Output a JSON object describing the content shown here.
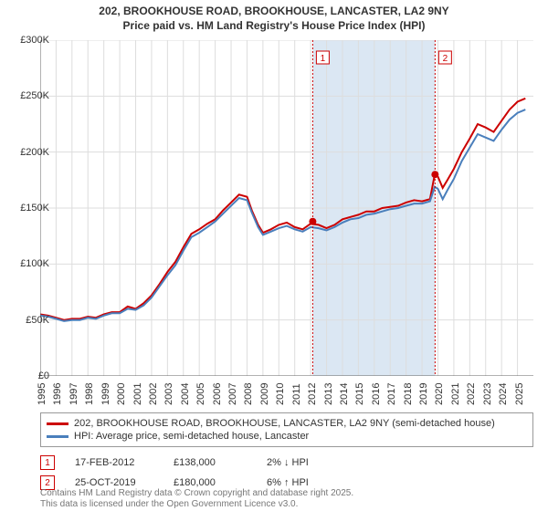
{
  "title_line1": "202, BROOKHOUSE ROAD, BROOKHOUSE, LANCASTER, LA2 9NY",
  "title_line2": "Price paid vs. HM Land Registry's House Price Index (HPI)",
  "title_fontsize": 12,
  "chart": {
    "type": "line",
    "background_color": "#ffffff",
    "shaded_band": {
      "x_start": 2012.13,
      "x_end": 2019.82,
      "color": "#dbe7f3"
    },
    "xlim": [
      1995,
      2026
    ],
    "ylim": [
      0,
      300000
    ],
    "ytick_step": 50000,
    "ytick_format_prefix": "£",
    "ytick_format_suffix": "K",
    "xticks": [
      1995,
      1996,
      1997,
      1998,
      1999,
      2000,
      2001,
      2002,
      2003,
      2004,
      2005,
      2006,
      2007,
      2008,
      2009,
      2010,
      2011,
      2012,
      2013,
      2014,
      2015,
      2016,
      2017,
      2018,
      2019,
      2020,
      2021,
      2022,
      2023,
      2024,
      2025
    ],
    "axis_color": "#666666",
    "grid_color": "#dddddd",
    "series": [
      {
        "name": "202, BROOKHOUSE ROAD, BROOKHOUSE, LANCASTER, LA2 9NY (semi-detached house)",
        "color": "#cc0000",
        "width": 2,
        "data": [
          [
            1995,
            55000
          ],
          [
            1995.5,
            54000
          ],
          [
            1996,
            52000
          ],
          [
            1996.5,
            50000
          ],
          [
            1997,
            51000
          ],
          [
            1997.5,
            51000
          ],
          [
            1998,
            53000
          ],
          [
            1998.5,
            52000
          ],
          [
            1999,
            55000
          ],
          [
            1999.5,
            57000
          ],
          [
            2000,
            57000
          ],
          [
            2000.5,
            62000
          ],
          [
            2001,
            60000
          ],
          [
            2001.5,
            65000
          ],
          [
            2002,
            72000
          ],
          [
            2002.5,
            82000
          ],
          [
            2003,
            93000
          ],
          [
            2003.5,
            102000
          ],
          [
            2004,
            115000
          ],
          [
            2004.5,
            127000
          ],
          [
            2005,
            131000
          ],
          [
            2005.5,
            136000
          ],
          [
            2006,
            140000
          ],
          [
            2006.5,
            148000
          ],
          [
            2007,
            155000
          ],
          [
            2007.5,
            162000
          ],
          [
            2008,
            160000
          ],
          [
            2008.3,
            148000
          ],
          [
            2008.7,
            135000
          ],
          [
            2009,
            128000
          ],
          [
            2009.5,
            131000
          ],
          [
            2010,
            135000
          ],
          [
            2010.5,
            137000
          ],
          [
            2011,
            133000
          ],
          [
            2011.5,
            131000
          ],
          [
            2012,
            136000
          ],
          [
            2012.5,
            135000
          ],
          [
            2013,
            132000
          ],
          [
            2013.5,
            135000
          ],
          [
            2014,
            140000
          ],
          [
            2014.5,
            142000
          ],
          [
            2015,
            144000
          ],
          [
            2015.5,
            147000
          ],
          [
            2016,
            147000
          ],
          [
            2016.5,
            150000
          ],
          [
            2017,
            151000
          ],
          [
            2017.5,
            152000
          ],
          [
            2018,
            155000
          ],
          [
            2018.5,
            157000
          ],
          [
            2019,
            156000
          ],
          [
            2019.5,
            158000
          ],
          [
            2019.8,
            180000
          ],
          [
            2020,
            178000
          ],
          [
            2020.3,
            168000
          ],
          [
            2020.6,
            175000
          ],
          [
            2021,
            185000
          ],
          [
            2021.5,
            200000
          ],
          [
            2022,
            212000
          ],
          [
            2022.5,
            225000
          ],
          [
            2023,
            222000
          ],
          [
            2023.5,
            218000
          ],
          [
            2024,
            228000
          ],
          [
            2024.5,
            238000
          ],
          [
            2025,
            245000
          ],
          [
            2025.5,
            248000
          ]
        ]
      },
      {
        "name": "HPI: Average price, semi-detached house, Lancaster",
        "color": "#4a7fbc",
        "width": 2,
        "data": [
          [
            1995,
            54000
          ],
          [
            1995.5,
            53000
          ],
          [
            1996,
            51000
          ],
          [
            1996.5,
            49000
          ],
          [
            1997,
            50000
          ],
          [
            1997.5,
            50000
          ],
          [
            1998,
            52000
          ],
          [
            1998.5,
            51000
          ],
          [
            1999,
            54000
          ],
          [
            1999.5,
            56000
          ],
          [
            2000,
            56000
          ],
          [
            2000.5,
            60000
          ],
          [
            2001,
            59000
          ],
          [
            2001.5,
            63000
          ],
          [
            2002,
            70000
          ],
          [
            2002.5,
            80000
          ],
          [
            2003,
            90000
          ],
          [
            2003.5,
            99000
          ],
          [
            2004,
            112000
          ],
          [
            2004.5,
            124000
          ],
          [
            2005,
            128000
          ],
          [
            2005.5,
            133000
          ],
          [
            2006,
            138000
          ],
          [
            2006.5,
            145000
          ],
          [
            2007,
            152000
          ],
          [
            2007.5,
            159000
          ],
          [
            2008,
            157000
          ],
          [
            2008.3,
            146000
          ],
          [
            2008.7,
            133000
          ],
          [
            2009,
            126000
          ],
          [
            2009.5,
            129000
          ],
          [
            2010,
            132000
          ],
          [
            2010.5,
            134000
          ],
          [
            2011,
            131000
          ],
          [
            2011.5,
            129000
          ],
          [
            2012,
            133000
          ],
          [
            2012.5,
            132000
          ],
          [
            2013,
            130000
          ],
          [
            2013.5,
            133000
          ],
          [
            2014,
            137000
          ],
          [
            2014.5,
            140000
          ],
          [
            2015,
            141000
          ],
          [
            2015.5,
            144000
          ],
          [
            2016,
            145000
          ],
          [
            2016.5,
            147000
          ],
          [
            2017,
            149000
          ],
          [
            2017.5,
            150000
          ],
          [
            2018,
            152000
          ],
          [
            2018.5,
            154000
          ],
          [
            2019,
            154000
          ],
          [
            2019.5,
            156000
          ],
          [
            2019.8,
            169000
          ],
          [
            2020,
            167000
          ],
          [
            2020.3,
            158000
          ],
          [
            2020.6,
            166000
          ],
          [
            2021,
            176000
          ],
          [
            2021.5,
            192000
          ],
          [
            2022,
            204000
          ],
          [
            2022.5,
            216000
          ],
          [
            2023,
            213000
          ],
          [
            2023.5,
            210000
          ],
          [
            2024,
            220000
          ],
          [
            2024.5,
            229000
          ],
          [
            2025,
            235000
          ],
          [
            2025.5,
            238000
          ]
        ]
      }
    ],
    "sale_markers": [
      {
        "n": "1",
        "x": 2012.13,
        "y": 138000,
        "color": "#cc0000"
      },
      {
        "n": "2",
        "x": 2019.82,
        "y": 180000,
        "color": "#cc0000"
      }
    ],
    "marker_label_y_top": 12
  },
  "legend": {
    "border_color": "#999999",
    "items": [
      {
        "label": "202, BROOKHOUSE ROAD, BROOKHOUSE, LANCASTER, LA2 9NY (semi-detached house)",
        "color": "#cc0000"
      },
      {
        "label": "HPI: Average price, semi-detached house, Lancaster",
        "color": "#4a7fbc"
      }
    ]
  },
  "sales": [
    {
      "n": "1",
      "date": "17-FEB-2012",
      "price": "£138,000",
      "pct": "2% ↓ HPI",
      "marker_color": "#cc0000"
    },
    {
      "n": "2",
      "date": "25-OCT-2019",
      "price": "£180,000",
      "pct": "6% ↑ HPI",
      "marker_color": "#cc0000"
    }
  ],
  "disclaimer_line1": "Contains HM Land Registry data © Crown copyright and database right 2025.",
  "disclaimer_line2": "This data is licensed under the Open Government Licence v3.0."
}
